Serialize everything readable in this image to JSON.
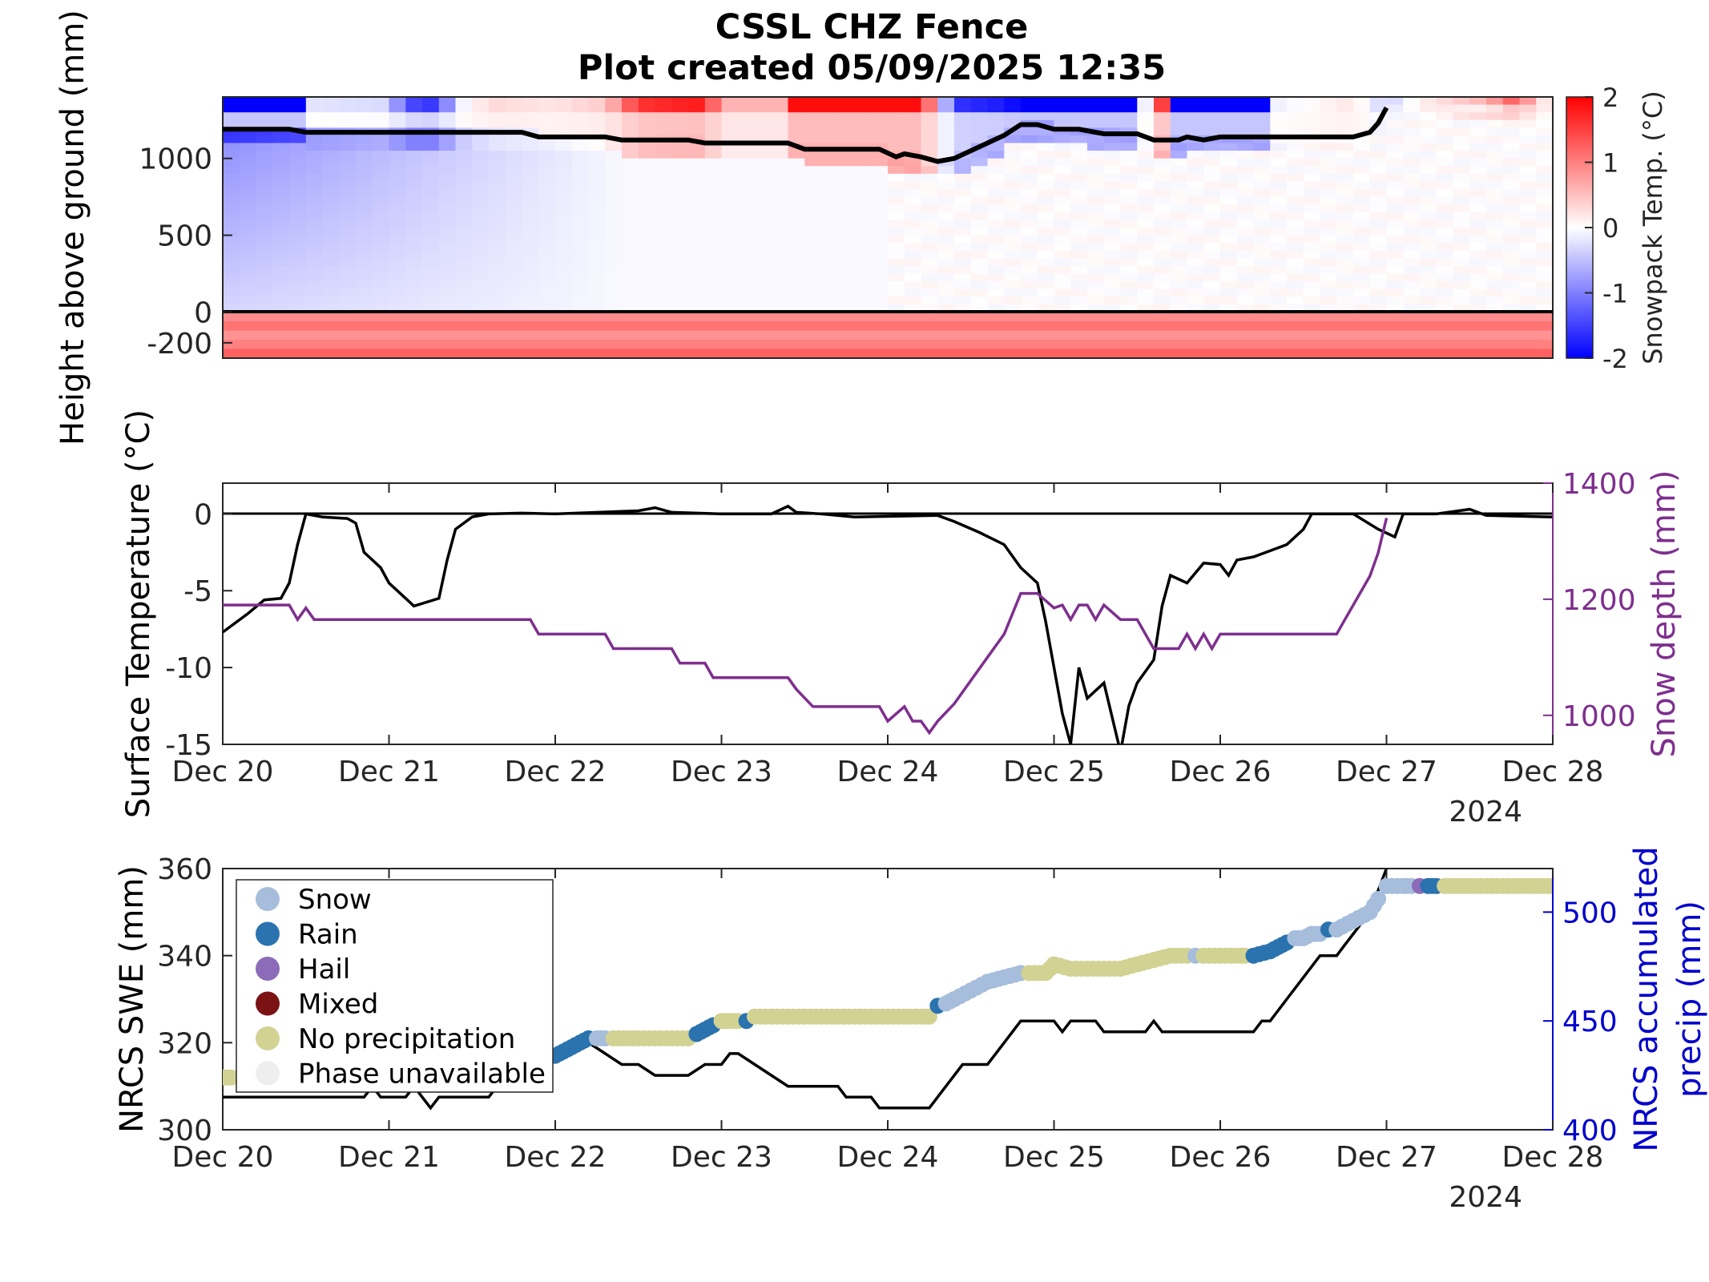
{
  "title": "CSSL CHZ Fence",
  "subtitle": "Plot created 05/09/2025 12:35",
  "x_ticks": [
    "Dec 20",
    "Dec 21",
    "Dec 22",
    "Dec 23",
    "Dec 24",
    "Dec 25",
    "Dec 26",
    "Dec 27",
    "Dec 28"
  ],
  "x_year": "2024",
  "chart_data": [
    {
      "type": "heatmap",
      "ylabel": "Height above ground (mm)",
      "colorbar_label": "Snowpack Temp. (°C)",
      "y_ticks": [
        "1000",
        "500",
        "0",
        "-200"
      ],
      "colorbar_ticks": [
        "2",
        "1",
        "0",
        "-1",
        "-2"
      ],
      "clim": [
        -2,
        2
      ],
      "ylim": [
        -300,
        1400
      ],
      "x_range_days": [
        "Dec 20",
        "Dec 28"
      ],
      "colors": {
        "cold": "#0000ff",
        "neutral": "#ffffff",
        "warm": "#ff0000",
        "snow_line": "#000000"
      },
      "snow_depth_line_mm": [
        [
          0,
          1190
        ],
        [
          0.4,
          1190
        ],
        [
          0.5,
          1170
        ],
        [
          1.8,
          1170
        ],
        [
          1.9,
          1140
        ],
        [
          2.3,
          1140
        ],
        [
          2.4,
          1120
        ],
        [
          2.8,
          1120
        ],
        [
          2.9,
          1100
        ],
        [
          3.4,
          1100
        ],
        [
          3.5,
          1060
        ],
        [
          3.95,
          1060
        ],
        [
          4.05,
          1010
        ],
        [
          4.1,
          1030
        ],
        [
          4.2,
          1010
        ],
        [
          4.3,
          980
        ],
        [
          4.4,
          1000
        ],
        [
          4.7,
          1150
        ],
        [
          4.8,
          1220
        ],
        [
          4.9,
          1220
        ],
        [
          5.0,
          1190
        ],
        [
          5.15,
          1190
        ],
        [
          5.3,
          1160
        ],
        [
          5.5,
          1160
        ],
        [
          5.6,
          1120
        ],
        [
          5.75,
          1120
        ],
        [
          5.8,
          1140
        ],
        [
          5.9,
          1120
        ],
        [
          6.0,
          1140
        ],
        [
          6.8,
          1140
        ],
        [
          6.9,
          1170
        ],
        [
          6.95,
          1230
        ],
        [
          7.0,
          1330
        ]
      ]
    },
    {
      "type": "line",
      "ylabel": "Surface Temperature (°C)",
      "y2label": "Snow depth (mm)",
      "y_ticks": [
        "0",
        "-5",
        "-10",
        "-15"
      ],
      "y2_ticks": [
        "1400",
        "1200",
        "1000"
      ],
      "ylim": [
        -15,
        2
      ],
      "y2lim": [
        950,
        1400
      ],
      "series": [
        {
          "color": "#000000",
          "points": [
            [
              0,
              -7.7
            ],
            [
              0.15,
              -6.5
            ],
            [
              0.25,
              -5.6
            ],
            [
              0.35,
              -5.5
            ],
            [
              0.4,
              -4.5
            ],
            [
              0.45,
              -2
            ],
            [
              0.5,
              0
            ],
            [
              0.6,
              -0.2
            ],
            [
              0.75,
              -0.3
            ],
            [
              0.8,
              -0.6
            ],
            [
              0.85,
              -2.5
            ],
            [
              0.95,
              -3.5
            ],
            [
              1.0,
              -4.5
            ],
            [
              1.1,
              -5.5
            ],
            [
              1.15,
              -6
            ],
            [
              1.3,
              -5.5
            ],
            [
              1.35,
              -3
            ],
            [
              1.4,
              -1
            ],
            [
              1.5,
              -0.2
            ],
            [
              1.6,
              0
            ],
            [
              1.8,
              0.05
            ],
            [
              2.0,
              0
            ],
            [
              2.5,
              0.2
            ],
            [
              2.6,
              0.4
            ],
            [
              2.7,
              0.1
            ],
            [
              3.0,
              0
            ],
            [
              3.3,
              0
            ],
            [
              3.4,
              0.5
            ],
            [
              3.45,
              0.1
            ],
            [
              3.6,
              0
            ],
            [
              3.8,
              -0.2
            ],
            [
              4.3,
              -0.1
            ],
            [
              4.4,
              -0.5
            ],
            [
              4.55,
              -1.2
            ],
            [
              4.7,
              -2
            ],
            [
              4.8,
              -3.5
            ],
            [
              4.9,
              -4.5
            ],
            [
              4.95,
              -7
            ],
            [
              5.0,
              -10
            ],
            [
              5.05,
              -13
            ],
            [
              5.1,
              -15
            ],
            [
              5.15,
              -10
            ],
            [
              5.2,
              -12
            ],
            [
              5.3,
              -11
            ],
            [
              5.4,
              -15.5
            ],
            [
              5.45,
              -12.5
            ],
            [
              5.5,
              -11
            ],
            [
              5.6,
              -9.5
            ],
            [
              5.65,
              -6
            ],
            [
              5.7,
              -4
            ],
            [
              5.8,
              -4.5
            ],
            [
              5.9,
              -3.2
            ],
            [
              6.0,
              -3.3
            ],
            [
              6.05,
              -4
            ],
            [
              6.1,
              -3
            ],
            [
              6.2,
              -2.8
            ],
            [
              6.3,
              -2.4
            ],
            [
              6.4,
              -2
            ],
            [
              6.5,
              -1
            ],
            [
              6.55,
              0
            ],
            [
              6.8,
              0
            ],
            [
              6.95,
              -1
            ],
            [
              7.05,
              -1.5
            ],
            [
              7.1,
              0
            ],
            [
              7.3,
              0
            ],
            [
              7.5,
              0.3
            ],
            [
              7.6,
              -0.1
            ],
            [
              8.0,
              -0.2
            ]
          ]
        },
        {
          "color": "#7e2f8e",
          "axis": "right",
          "points": [
            [
              0,
              1190
            ],
            [
              0.4,
              1190
            ],
            [
              0.45,
              1165
            ],
            [
              0.5,
              1185
            ],
            [
              0.55,
              1165
            ],
            [
              1.85,
              1165
            ],
            [
              1.9,
              1140
            ],
            [
              2.3,
              1140
            ],
            [
              2.35,
              1115
            ],
            [
              2.7,
              1115
            ],
            [
              2.75,
              1090
            ],
            [
              2.9,
              1090
            ],
            [
              2.95,
              1065
            ],
            [
              3.4,
              1065
            ],
            [
              3.45,
              1045
            ],
            [
              3.55,
              1015
            ],
            [
              3.6,
              1015
            ],
            [
              3.95,
              1015
            ],
            [
              4.0,
              990
            ],
            [
              4.1,
              1015
            ],
            [
              4.15,
              990
            ],
            [
              4.2,
              990
            ],
            [
              4.25,
              970
            ],
            [
              4.3,
              990
            ],
            [
              4.4,
              1020
            ],
            [
              4.6,
              1100
            ],
            [
              4.7,
              1140
            ],
            [
              4.8,
              1210
            ],
            [
              4.9,
              1210
            ],
            [
              5.0,
              1185
            ],
            [
              5.05,
              1190
            ],
            [
              5.1,
              1165
            ],
            [
              5.15,
              1190
            ],
            [
              5.2,
              1190
            ],
            [
              5.25,
              1165
            ],
            [
              5.3,
              1190
            ],
            [
              5.4,
              1165
            ],
            [
              5.5,
              1165
            ],
            [
              5.55,
              1140
            ],
            [
              5.6,
              1115
            ],
            [
              5.75,
              1115
            ],
            [
              5.8,
              1140
            ],
            [
              5.85,
              1115
            ],
            [
              5.9,
              1140
            ],
            [
              5.95,
              1115
            ],
            [
              6.0,
              1140
            ],
            [
              6.7,
              1140
            ],
            [
              6.75,
              1165
            ],
            [
              6.8,
              1190
            ],
            [
              6.85,
              1215
            ],
            [
              6.9,
              1240
            ],
            [
              6.95,
              1280
            ],
            [
              7.0,
              1340
            ]
          ]
        }
      ]
    },
    {
      "type": "scatter",
      "ylabel": "NRCS SWE (mm)",
      "y2label": "NRCS accumulated precip (mm)",
      "y_ticks": [
        "360",
        "340",
        "320",
        "300"
      ],
      "y2_ticks": [
        "500",
        "450",
        "400"
      ],
      "ylim": [
        300,
        360
      ],
      "y2lim": [
        400,
        520
      ],
      "legend_position": "upper-left",
      "legend": [
        {
          "label": "Snow",
          "color": "#a6bddb"
        },
        {
          "label": "Rain",
          "color": "#2b73ae"
        },
        {
          "label": "Hail",
          "color": "#8c6bb8"
        },
        {
          "label": "Mixed",
          "color": "#7b1315"
        },
        {
          "label": "No precipitation",
          "color": "#d2d293"
        },
        {
          "label": "Phase unavailable",
          "color": "#eeeeee"
        }
      ],
      "precip_line": [
        [
          0,
          415
        ],
        [
          0.85,
          415
        ],
        [
          0.9,
          420
        ],
        [
          0.95,
          415
        ],
        [
          1.1,
          415
        ],
        [
          1.15,
          420
        ],
        [
          1.2,
          415
        ],
        [
          1.25,
          410
        ],
        [
          1.3,
          415
        ],
        [
          1.6,
          415
        ],
        [
          1.65,
          420
        ],
        [
          1.8,
          420
        ],
        [
          1.9,
          430
        ],
        [
          2.0,
          435
        ],
        [
          2.1,
          440
        ],
        [
          2.2,
          440
        ],
        [
          2.3,
          435
        ],
        [
          2.4,
          430
        ],
        [
          2.5,
          430
        ],
        [
          2.6,
          425
        ],
        [
          2.8,
          425
        ],
        [
          2.9,
          430
        ],
        [
          3.0,
          430
        ],
        [
          3.05,
          435
        ],
        [
          3.1,
          435
        ],
        [
          3.2,
          430
        ],
        [
          3.3,
          425
        ],
        [
          3.4,
          420
        ],
        [
          3.7,
          420
        ],
        [
          3.75,
          415
        ],
        [
          3.9,
          415
        ],
        [
          3.95,
          410
        ],
        [
          4.25,
          410
        ],
        [
          4.35,
          420
        ],
        [
          4.45,
          430
        ],
        [
          4.5,
          430
        ],
        [
          4.6,
          430
        ],
        [
          4.7,
          440
        ],
        [
          4.8,
          450
        ],
        [
          5.0,
          450
        ],
        [
          5.05,
          445
        ],
        [
          5.1,
          450
        ],
        [
          5.25,
          450
        ],
        [
          5.3,
          445
        ],
        [
          5.55,
          445
        ],
        [
          5.6,
          450
        ],
        [
          5.65,
          445
        ],
        [
          6.2,
          445
        ],
        [
          6.25,
          450
        ],
        [
          6.3,
          450
        ],
        [
          6.4,
          460
        ],
        [
          6.5,
          470
        ],
        [
          6.6,
          480
        ],
        [
          6.7,
          480
        ],
        [
          6.75,
          485
        ],
        [
          6.8,
          490
        ],
        [
          6.9,
          500
        ],
        [
          6.95,
          510
        ],
        [
          7.0,
          520
        ]
      ],
      "swe_points": [
        {
          "x": [
            0.0,
            0.05
          ],
          "y": 312,
          "phase": "No precipitation"
        },
        {
          "x": [
            2.0,
            2.05,
            2.1,
            2.15,
            2.2
          ],
          "y": [
            317,
            318,
            319,
            320,
            321
          ],
          "phase": "Rain"
        },
        {
          "x": [
            2.25,
            2.3
          ],
          "y": 321,
          "phase": "Snow"
        },
        {
          "x": [
            2.35,
            2.5,
            2.6,
            2.7,
            2.8
          ],
          "y": 321,
          "phase": "No precipitation"
        },
        {
          "x": [
            2.85,
            2.9,
            2.95
          ],
          "y": [
            322,
            323,
            324
          ],
          "phase": "Rain"
        },
        {
          "x": [
            3.0,
            3.05,
            3.1
          ],
          "y": 325,
          "phase": "No precipitation"
        },
        {
          "x": [
            3.15
          ],
          "y": 325,
          "phase": "Rain"
        },
        {
          "x": [
            3.2,
            3.3,
            3.4,
            3.5,
            3.6,
            3.7,
            3.8,
            3.9,
            4.0,
            4.1,
            4.2,
            4.25
          ],
          "y": 326,
          "phase": "No precipitation"
        },
        {
          "x": [
            4.3
          ],
          "y": 328.5,
          "phase": "Rain"
        },
        {
          "x": [
            4.35,
            4.4,
            4.5,
            4.6,
            4.7,
            4.8
          ],
          "y": [
            329,
            330,
            332,
            334,
            335,
            336
          ],
          "phase": "Snow"
        },
        {
          "x": [
            4.85,
            4.95,
            5.0,
            5.1,
            5.2,
            5.3,
            5.4,
            5.5,
            5.6,
            5.7,
            5.8
          ],
          "y": [
            336,
            336,
            338,
            337,
            337,
            337,
            337,
            338,
            339,
            340,
            340
          ],
          "phase": "No precipitation"
        },
        {
          "x": [
            5.85
          ],
          "y": 340,
          "phase": "Snow"
        },
        {
          "x": [
            5.9,
            6.0,
            6.1,
            6.15
          ],
          "y": 340,
          "phase": "No precipitation"
        },
        {
          "x": [
            6.2,
            6.3,
            6.35,
            6.4
          ],
          "y": [
            340,
            341,
            342,
            343
          ],
          "phase": "Rain"
        },
        {
          "x": [
            6.45,
            6.5,
            6.55,
            6.6
          ],
          "y": [
            344,
            344,
            345,
            345
          ],
          "phase": "Snow"
        },
        {
          "x": [
            6.65
          ],
          "y": 346,
          "phase": "Rain"
        },
        {
          "x": [
            6.7,
            6.8,
            6.9,
            6.95
          ],
          "y": [
            346,
            348,
            350,
            353
          ],
          "phase": "Snow"
        },
        {
          "x": [
            7.0,
            7.1,
            7.15
          ],
          "y": 356,
          "phase": "Snow"
        },
        {
          "x": [
            7.2
          ],
          "y": 356,
          "phase": "Hail"
        },
        {
          "x": [
            7.25,
            7.3
          ],
          "y": 356,
          "phase": "Rain"
        },
        {
          "x": [
            7.35,
            7.5,
            7.6,
            7.7,
            7.8,
            7.9,
            8.0
          ],
          "y": 356,
          "phase": "No precipitation"
        }
      ]
    }
  ]
}
